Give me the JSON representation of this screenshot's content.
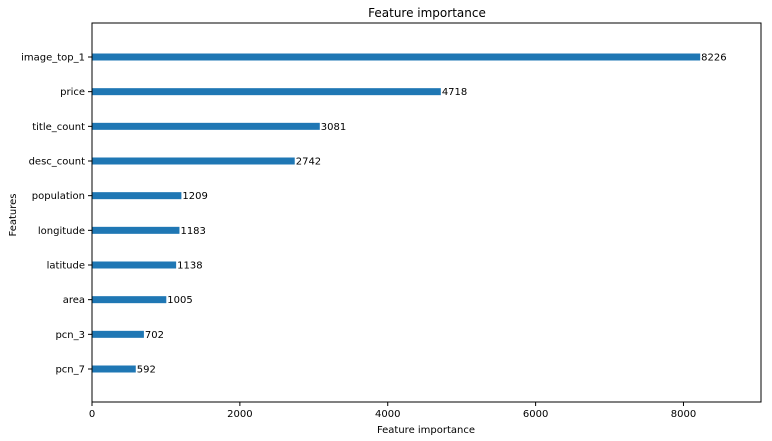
{
  "chart_data": {
    "type": "bar",
    "orientation": "horizontal",
    "title": "Feature importance",
    "xlabel": "Feature importance",
    "ylabel": "Features",
    "xlim": [
      0,
      9048.6
    ],
    "xticks": [
      0,
      2000,
      4000,
      6000,
      8000
    ],
    "grid": false,
    "bar_color": "#1f77b4",
    "categories": [
      "image_top_1",
      "price",
      "title_count",
      "desc_count",
      "population",
      "longitude",
      "latitude",
      "area",
      "pcn_3",
      "pcn_7"
    ],
    "values": [
      8226,
      4718,
      3081,
      2742,
      1209,
      1183,
      1138,
      1005,
      702,
      592
    ],
    "data_labels": [
      "8226",
      "4718",
      "3081",
      "2742",
      "1209",
      "1183",
      "1138",
      "1005",
      "702",
      "592"
    ]
  }
}
